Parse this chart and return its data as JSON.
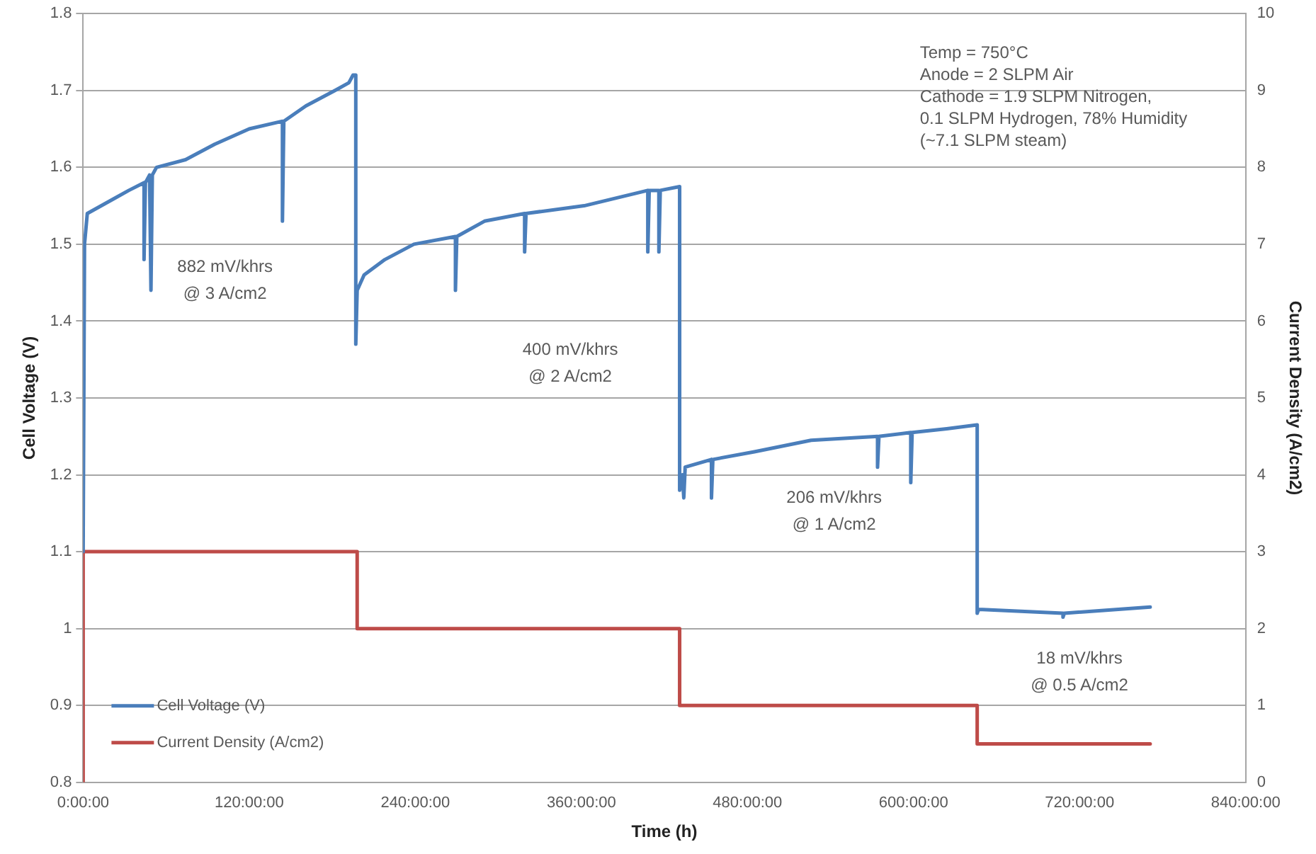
{
  "chart_data": {
    "type": "line",
    "xlabel": "Time (h)",
    "ylabel": "Cell Voltage (V)",
    "y2label": "Current Density (A/cm2)",
    "xlim": [
      0,
      840
    ],
    "xticks": [
      {
        "value": 0,
        "label": "0:00:00"
      },
      {
        "value": 120,
        "label": "120:00:00"
      },
      {
        "value": 240,
        "label": "240:00:00"
      },
      {
        "value": 360,
        "label": "360:00:00"
      },
      {
        "value": 480,
        "label": "480:00:00"
      },
      {
        "value": 600,
        "label": "600:00:00"
      },
      {
        "value": 720,
        "label": "720:00:00"
      },
      {
        "value": 840,
        "label": "840:00:00"
      }
    ],
    "ylim": [
      0.8,
      1.8
    ],
    "yticks": [
      0.8,
      0.9,
      1,
      1.1,
      1.2,
      1.3,
      1.4,
      1.5,
      1.6,
      1.7,
      1.8
    ],
    "y2lim": [
      0,
      10
    ],
    "y2ticks": [
      0,
      1,
      2,
      3,
      4,
      5,
      6,
      7,
      8,
      9,
      10
    ],
    "grid": "y",
    "legend": "bottom left",
    "marker": "none",
    "line_style": "solid",
    "series": [
      {
        "name": "Cell Voltage (V)",
        "color": "#4a7ebb",
        "x": [
          0,
          1,
          3,
          23,
          33,
          44,
          44,
          45,
          48,
          49,
          50,
          53,
          74,
          95,
          120,
          144,
          144,
          145,
          161,
          182,
          192,
          195,
          197,
          197,
          198,
          203,
          218,
          239,
          269,
          269,
          270,
          290,
          319,
          319,
          320,
          362,
          408,
          408,
          409,
          416,
          416,
          417,
          431,
          431,
          433,
          434,
          435,
          454,
          454,
          455,
          485,
          526,
          574,
          574,
          575,
          598,
          598,
          599,
          624,
          646,
          646,
          647,
          708,
          708,
          709,
          771
        ],
        "values": [
          1.1,
          1.5,
          1.54,
          1.56,
          1.57,
          1.58,
          1.48,
          1.58,
          1.59,
          1.44,
          1.59,
          1.6,
          1.61,
          1.63,
          1.65,
          1.66,
          1.53,
          1.66,
          1.68,
          1.7,
          1.71,
          1.72,
          1.72,
          1.37,
          1.44,
          1.46,
          1.48,
          1.5,
          1.51,
          1.44,
          1.51,
          1.53,
          1.54,
          1.49,
          1.54,
          1.55,
          1.57,
          1.49,
          1.57,
          1.57,
          1.49,
          1.57,
          1.575,
          1.18,
          1.2,
          1.17,
          1.21,
          1.22,
          1.17,
          1.22,
          1.23,
          1.245,
          1.25,
          1.21,
          1.25,
          1.255,
          1.19,
          1.255,
          1.26,
          1.265,
          1.02,
          1.025,
          1.02,
          1.015,
          1.02,
          1.028
        ]
      },
      {
        "name": "Current Density (A/cm2)",
        "color": "#be4b48",
        "axis": "y2",
        "x": [
          0,
          0,
          198,
          198,
          431,
          431,
          646,
          646,
          771
        ],
        "values": [
          0,
          3,
          3,
          2,
          2,
          1,
          1,
          0.5,
          0.5
        ]
      }
    ],
    "annotations": [
      "882 mV/khrs\n@ 3 A/cm2",
      "400 mV/khrs\n@ 2 A/cm2",
      "206 mV/khrs\n@ 1 A/cm2",
      "18 mV/khrs\n@ 0.5 A/cm2",
      "Temp = 750°C\nAnode = 2 SLPM Air\nCathode = 1.9 SLPM Nitrogen,\n0.1 SLPM Hydrogen, 78% Humidity\n(~7.1 SLPM steam)"
    ]
  }
}
